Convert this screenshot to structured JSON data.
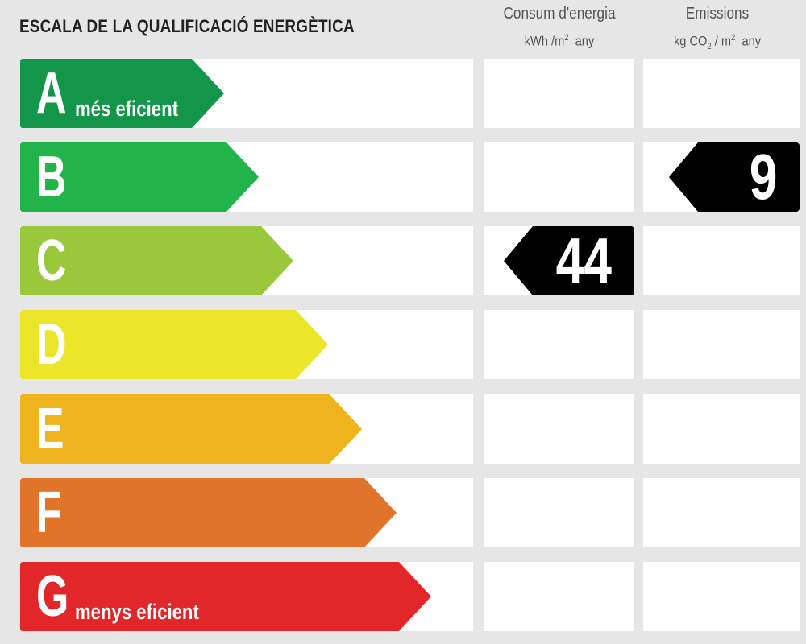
{
  "title": "ESCALA DE LA QUALIFICACIÓ ENERGÈTICA",
  "columns": {
    "energy": {
      "title": "Consum d'energia",
      "unit_pre": "kWh /m",
      "unit_sup": "2",
      "unit_post": "  any"
    },
    "emissions": {
      "title": "Emissions",
      "unit_pre": "kg CO",
      "unit_sub": "2",
      "unit_mid": " / m",
      "unit_sup": "2",
      "unit_post": "  any"
    }
  },
  "classes": [
    {
      "letter": "A",
      "label": "més eficient",
      "color": "#13954a"
    },
    {
      "letter": "B",
      "label": "",
      "color": "#22b34b"
    },
    {
      "letter": "C",
      "label": "",
      "color": "#99c83c"
    },
    {
      "letter": "D",
      "label": "",
      "color": "#ebe62a"
    },
    {
      "letter": "E",
      "label": "",
      "color": "#efb31e"
    },
    {
      "letter": "F",
      "label": "",
      "color": "#e0742b"
    },
    {
      "letter": "G",
      "label": "menys eficient",
      "color": "#e1272a"
    }
  ],
  "ratings": {
    "energy": {
      "value": "44",
      "class": "C"
    },
    "emissions": {
      "value": "9",
      "class": "B"
    }
  }
}
